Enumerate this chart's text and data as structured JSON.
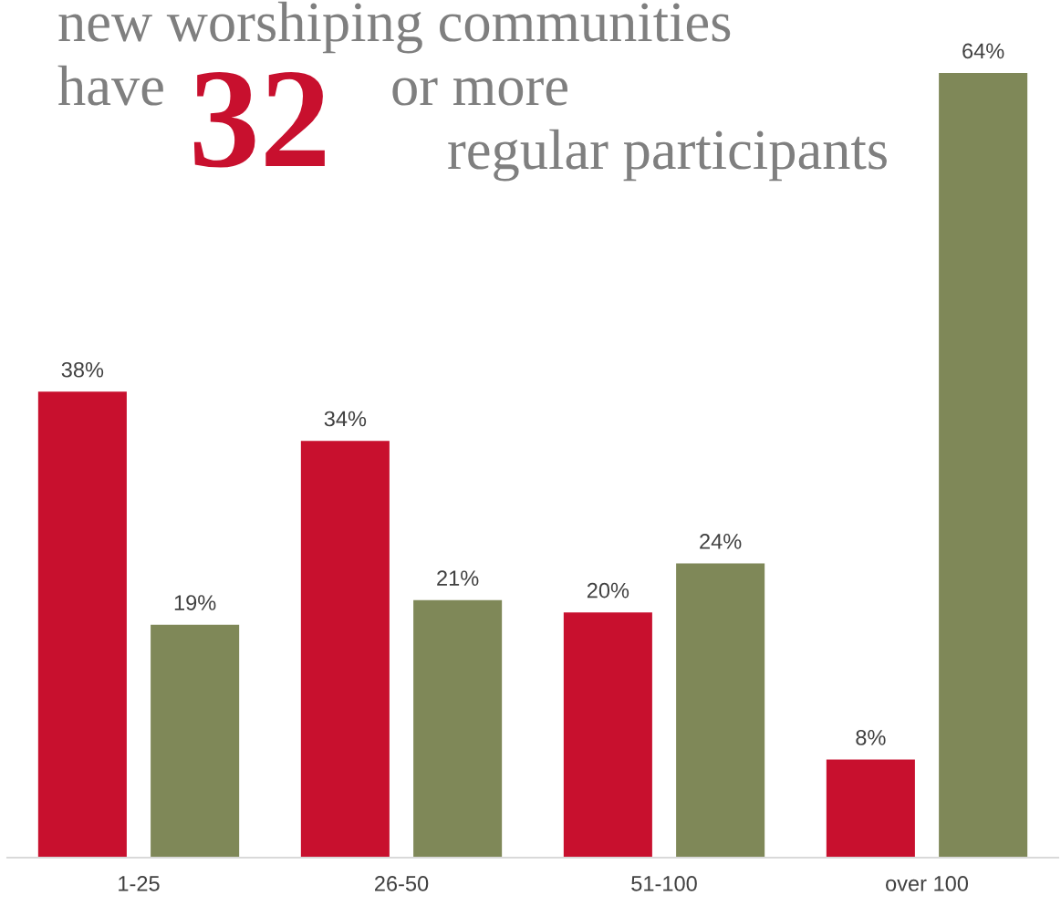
{
  "chart_data": {
    "type": "bar",
    "categories": [
      "1-25",
      "26-50",
      "51-100",
      "over 100"
    ],
    "series": [
      {
        "color": "#c8102e",
        "values": [
          38,
          34,
          20,
          8
        ],
        "value_labels": [
          "38%",
          "34%",
          "20%",
          "8%"
        ]
      },
      {
        "color": "#7f8858",
        "values": [
          19,
          21,
          24,
          64
        ],
        "value_labels": [
          "19%",
          "21%",
          "24%",
          "64%"
        ]
      }
    ],
    "grid": false,
    "legend": false,
    "tick_labels": "x",
    "annotations": [
      "new worshiping communities",
      "have",
      "32",
      "or more",
      "regular participants"
    ]
  }
}
